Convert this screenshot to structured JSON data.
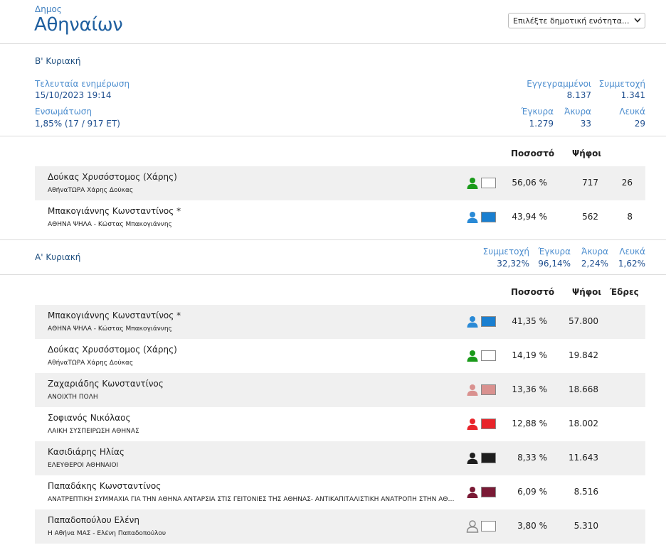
{
  "header": {
    "municipality_type": "Δημος",
    "municipality_name": "Αθηναίων",
    "unit_select": {
      "value": "Επιλέξτε δημοτική ενότητα..."
    }
  },
  "round_b": {
    "title": "Β' Κυριακή",
    "last_update_label": "Τελευταία ενημέρωση",
    "last_update_value": "15/10/2023 19:14",
    "integration_label": "Ενσωμάτωση",
    "integration_value": "1,85% (17 / 917 ΕΤ)",
    "registered_label": "Εγγεγραμμένοι",
    "registered_value": "8.137",
    "turnout_label": "Συμμετοχή",
    "turnout_value": "1.341",
    "valid_label": "Έγκυρα",
    "valid_value": "1.279",
    "invalid_label": "Άκυρα",
    "invalid_value": "33",
    "blank_label": "Λευκά",
    "blank_value": "29",
    "col_percent": "Ποσοστό",
    "col_votes": "Ψήφοι",
    "candidates": [
      {
        "name": "Δούκας Χρυσόστομος (Χάρης)",
        "party": "ΑθήναΤΩΡΑ Χάρης Δούκας",
        "percent": "56,06 %",
        "votes": "717",
        "extra": "26",
        "color": "#ffffff",
        "person_color": "#1a9a1a"
      },
      {
        "name": "Μπακογιάννης Κωνσταντίνος *",
        "party": "ΑΘΗΝΑ ΨΗΛΑ - Κώστας Μπακογιάννης",
        "percent": "43,94 %",
        "votes": "562",
        "extra": "8",
        "color": "#1a7fd0",
        "person_color": "#2a8ad6"
      }
    ]
  },
  "round_a": {
    "title": "Α' Κυριακή",
    "turnout_label": "Συμμετοχή",
    "turnout_value": "32,32%",
    "valid_label": "Έγκυρα",
    "valid_value": "96,14%",
    "invalid_label": "Άκυρα",
    "invalid_value": "2,24%",
    "blank_label": "Λευκά",
    "blank_value": "1,62%",
    "col_percent": "Ποσοστό",
    "col_votes": "Ψήφοι",
    "col_seats": "Έδρες",
    "candidates": [
      {
        "name": "Μπακογιάννης Κωνσταντίνος *",
        "party": "ΑΘΗΝΑ ΨΗΛΑ - Κώστας Μπακογιάννης",
        "percent": "41,35 %",
        "votes": "57.800",
        "color": "#1a7fd0",
        "person_color": "#2a8ad6"
      },
      {
        "name": "Δούκας Χρυσόστομος (Χάρης)",
        "party": "ΑθήναΤΩΡΑ Χάρης Δούκας",
        "percent": "14,19 %",
        "votes": "19.842",
        "color": "#ffffff",
        "person_color": "#1a9a1a"
      },
      {
        "name": "Ζαχαριάδης Κωνσταντίνος",
        "party": "ΑΝΟΙΧΤΗ ΠΟΛΗ",
        "percent": "13,36 %",
        "votes": "18.668",
        "color": "#d9918f",
        "person_color": "#d9918f"
      },
      {
        "name": "Σοφιανός Νικόλαος",
        "party": "ΛΑΪΚΗ ΣΥΣΠΕΙΡΩΣΗ ΑΘΗΝΑΣ",
        "percent": "12,88 %",
        "votes": "18.002",
        "color": "#e8242a",
        "person_color": "#e8242a"
      },
      {
        "name": "Κασιδιάρης Ηλίας",
        "party": "ΕΛΕΥΘΕΡΟΙ ΑΘΗΝΑΙΟΙ",
        "percent": "8,33 %",
        "votes": "11.643",
        "color": "#1e1e1e",
        "person_color": "#1e1e1e"
      },
      {
        "name": "Παπαδάκης Κωνσταντίνος",
        "party": "ΑΝΑΤΡΕΠΤΙΚΗ ΣΥΜΜΑΧΙΑ ΓΙΑ ΤΗΝ ΑΘΗΝΑ ΑΝΤΑΡΣΙΑ ΣΤΙΣ ΓΕΙΤΟΝΙΕΣ ΤΗΣ ΑΘΗΝΑΣ- ΑΝΤΙΚΑΠΙΤΑΛΙΣΤΙΚΗ ΑΝΑΤΡΟΠΗ ΣΤΗΝ ΑΘΗΝΑ/ ΑΝΤΑΡΣΥΑ",
        "percent": "6,09 %",
        "votes": "8.516",
        "color": "#7a1a35",
        "person_color": "#7a1a35"
      },
      {
        "name": "Παπαδοπούλου Ελένη",
        "party": "Η Αθήνα ΜΑΣ - Ελένη Παπαδοπούλου",
        "percent": "3,80 %",
        "votes": "5.310",
        "color": "#ffffff",
        "person_color": "#8a8a8a",
        "person_outline": true
      }
    ]
  }
}
